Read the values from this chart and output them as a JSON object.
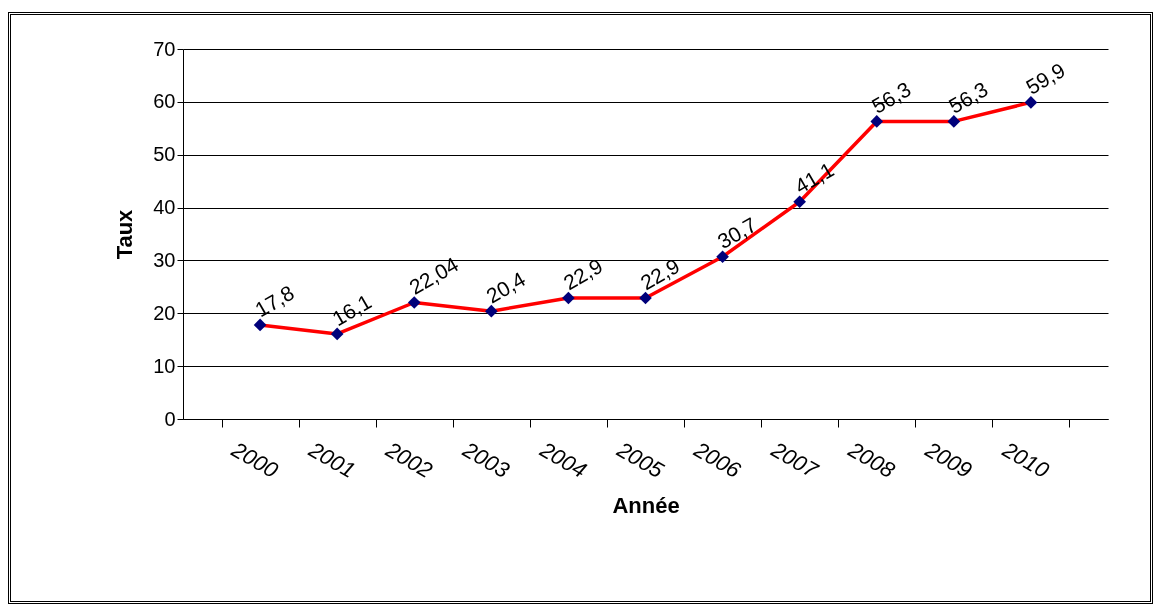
{
  "chart_data": {
    "type": "line",
    "xlabel": "Année",
    "ylabel": "Taux",
    "categories": [
      "2000",
      "2001",
      "2002",
      "2003",
      "2004",
      "2005",
      "2006",
      "2007",
      "2008",
      "2009",
      "2010"
    ],
    "series": [
      {
        "color": "#ff0000",
        "values": [
          17.8,
          16.1,
          22.04,
          20.4,
          22.9,
          22.9,
          30.7,
          41.1,
          56.3,
          56.3,
          59.9
        ],
        "value_labels": [
          "17,8",
          "16,1",
          "22,04",
          "20,4",
          "22,9",
          "22,9",
          "30,7",
          "41,1",
          "56,3",
          "56,3",
          "59,9"
        ]
      }
    ],
    "ylim": [
      0,
      70
    ],
    "yticks": [
      0,
      10,
      20,
      30,
      40,
      50,
      60,
      70
    ],
    "grid": "y",
    "marker": "diamond",
    "line_style": "solid"
  }
}
